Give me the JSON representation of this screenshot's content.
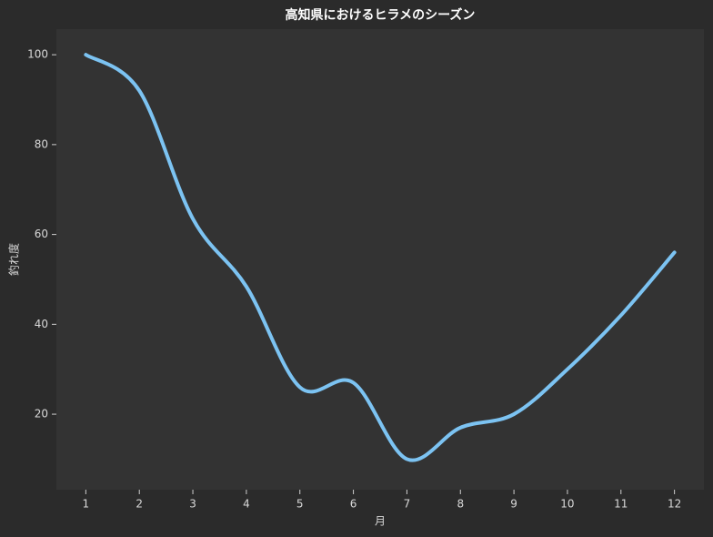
{
  "chart_data": {
    "type": "line",
    "title": "高知県におけるヒラメのシーズン",
    "xlabel": "月",
    "ylabel": "釣れ度",
    "x": [
      1,
      2,
      3,
      4,
      5,
      6,
      7,
      8,
      9,
      10,
      11,
      12
    ],
    "series": [
      {
        "color": "#7cc3f2",
        "values": [
          100,
          92,
          63.5,
          48.4,
          26,
          27,
          10,
          17,
          20,
          30,
          42,
          56
        ]
      }
    ],
    "xlim": [
      0.45,
      12.55
    ],
    "ylim": [
      3.2,
      105.7
    ],
    "xticks": [
      1,
      2,
      3,
      4,
      5,
      6,
      7,
      8,
      9,
      10,
      11,
      12
    ],
    "yticks": [
      20,
      40,
      60,
      80,
      100
    ],
    "grid": false
  }
}
